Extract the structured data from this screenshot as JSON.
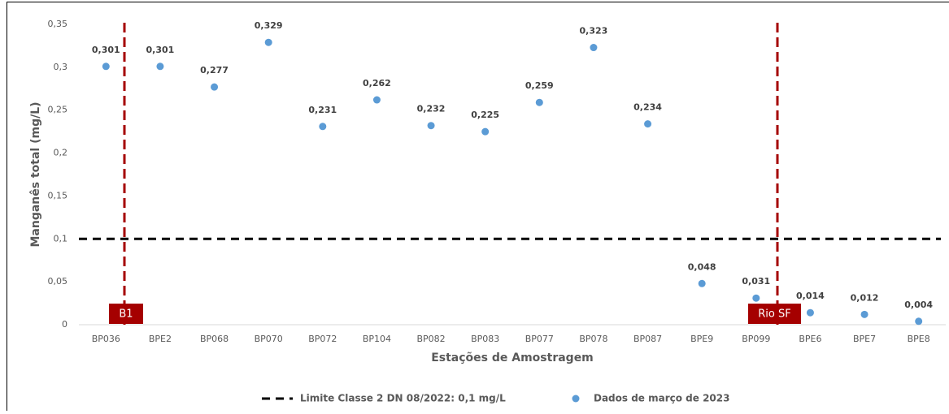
{
  "chart_data": {
    "type": "scatter",
    "y_label": "Manganês total (mg/L)",
    "x_label": "Estações de Amostragem",
    "categories": [
      "BP036",
      "BPE2",
      "BP068",
      "BP070",
      "BP072",
      "BP104",
      "BP082",
      "BP083",
      "BP077",
      "BP078",
      "BP087",
      "BPE9",
      "BP099",
      "BPE6",
      "BPE7",
      "BPE8"
    ],
    "series": [
      {
        "name": "Dados de março de 2023",
        "color": "#5b9bd5",
        "values": [
          0.301,
          0.301,
          0.277,
          0.329,
          0.231,
          0.262,
          0.232,
          0.225,
          0.259,
          0.323,
          0.234,
          0.048,
          0.031,
          0.014,
          0.012,
          0.004
        ],
        "value_labels": [
          "0,301",
          "0,301",
          "0,277",
          "0,329",
          "0,231",
          "0,262",
          "0,232",
          "0,225",
          "0,259",
          "0,323",
          "0,234",
          "0,048",
          "0,031",
          "0,014",
          "0,012",
          "0,004"
        ]
      }
    ],
    "threshold": {
      "name": "Limite Classe 2 DN 08/2022: 0,1 mg/L",
      "value": 0.1,
      "color": "#000000"
    },
    "annotations": [
      "B1",
      "Rio SF"
    ],
    "annotation_color": "#a50000",
    "ylim": [
      0,
      0.35
    ],
    "yticks": [
      0,
      {
        "value": 0.05,
        "label": "0,05"
      },
      {
        "value": 0.1,
        "label": "0,1"
      },
      {
        "value": 0.15,
        "label": "0,15"
      },
      {
        "value": 0.2,
        "label": "0,2"
      },
      {
        "value": 0.25,
        "label": "0,25"
      },
      {
        "value": 0.3,
        "label": "0,3"
      },
      {
        "value": 0.35,
        "label": "0,35"
      }
    ]
  }
}
